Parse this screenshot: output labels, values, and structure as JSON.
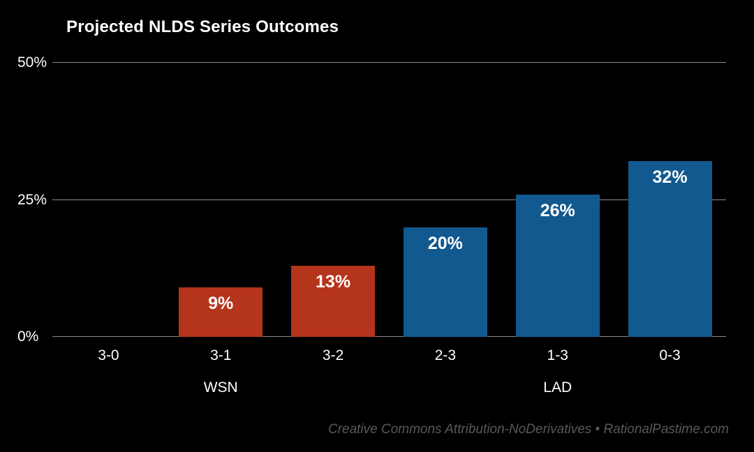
{
  "title": "Projected NLDS Series Outcomes",
  "footer": "Creative Commons Attribution-NoDerivatives  •  RationalPastime.com",
  "colors": {
    "background": "#000000",
    "wsn_bar": "#b5341c",
    "lad_bar": "#11598f",
    "gridline": "#8c8c8c",
    "text": "#ffffff",
    "footer_text": "#595959"
  },
  "chart_data": {
    "type": "bar",
    "title": "Projected NLDS Series Outcomes",
    "categories": [
      "3-0",
      "3-1",
      "3-2",
      "2-3",
      "1-3",
      "0-3"
    ],
    "values": [
      0,
      9,
      13,
      20,
      26,
      32
    ],
    "value_labels": [
      "",
      "9%",
      "13%",
      "20%",
      "26%",
      "32%"
    ],
    "bar_colors": [
      "#b5341c",
      "#b5341c",
      "#b5341c",
      "#11598f",
      "#11598f",
      "#11598f"
    ],
    "xlabel": "",
    "ylabel": "",
    "ylim": [
      0,
      50
    ],
    "yticks": [
      {
        "label": "0%",
        "value": 0
      },
      {
        "label": "25%",
        "value": 25
      },
      {
        "label": "50%",
        "value": 50
      }
    ],
    "group_labels": [
      {
        "text": "WSN",
        "slot": 1
      },
      {
        "text": "LAD",
        "slot": 4
      }
    ],
    "grid": true,
    "legend": false
  }
}
